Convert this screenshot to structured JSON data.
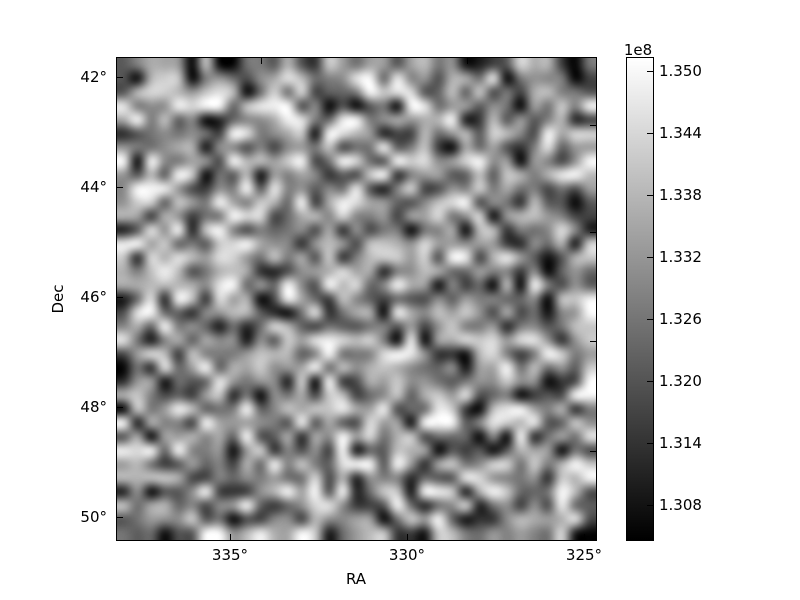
{
  "figure": {
    "background_color": "#ffffff",
    "foreground_color": "#000000"
  },
  "chart_data": {
    "type": "heatmap",
    "title": "",
    "xlabel": "RA",
    "ylabel": "Dec",
    "x_tick_labels": [
      "335°",
      "330°",
      "325°"
    ],
    "y_tick_labels": [
      "42°",
      "44°",
      "46°",
      "48°",
      "50°"
    ],
    "x_range_deg": [
      338.2,
      324.7
    ],
    "y_range_deg": [
      41.7,
      50.4
    ],
    "x_direction": "RA decreases from left to right",
    "grid": "off",
    "colorbar": {
      "offset_label": "1e8",
      "tick_labels": [
        "1.350",
        "1.344",
        "1.338",
        "1.332",
        "1.326",
        "1.320",
        "1.314",
        "1.308"
      ],
      "tick_values_e8": [
        1.35,
        1.344,
        1.338,
        1.332,
        1.326,
        1.32,
        1.314,
        1.308
      ],
      "vmin_e8": 1.3046,
      "vmax_e8": 1.351,
      "colormap": "gray",
      "top_color": "#ffffff",
      "bottom_color": "#000000",
      "position": "right"
    },
    "heatmap": {
      "description": "Square sky-map of a smoothed random grayscale intensity field (bilinear-interpolated coarse grid); values span roughly 1.305e8 (black) to 1.351e8 (white), mostly mid-gray with scattered bright and dark blobs",
      "grid_cells": 35,
      "seed": 77,
      "mean_level": 0.55,
      "contrast": 1.75
    }
  }
}
